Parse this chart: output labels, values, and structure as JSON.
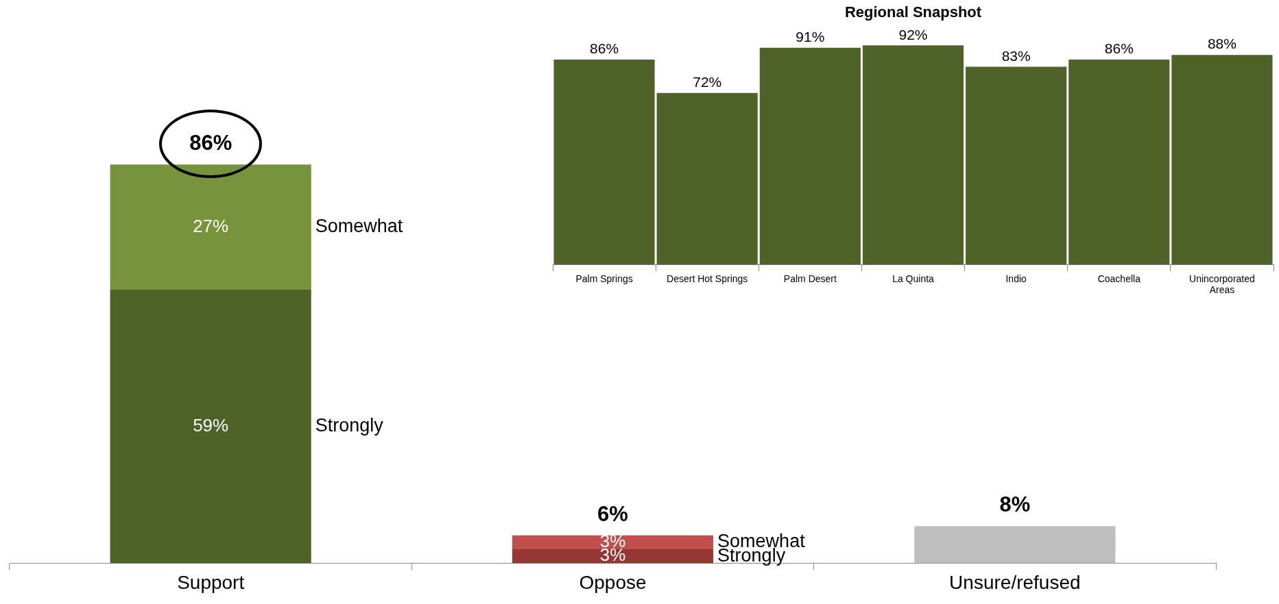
{
  "chart_data": [
    {
      "type": "bar",
      "stacked": true,
      "categories": [
        "Support",
        "Oppose",
        "Unsure/refused"
      ],
      "series": [
        {
          "name": "Strongly",
          "colors": [
            "#4f6228",
            "#953735",
            null
          ],
          "values": [
            59,
            3,
            null
          ],
          "value_labels": [
            "59%",
            "3%",
            null
          ]
        },
        {
          "name": "Somewhat",
          "colors": [
            "#77933c",
            "#c0504d",
            null
          ],
          "values": [
            27,
            3,
            null
          ],
          "value_labels": [
            "27%",
            "3%",
            null
          ]
        },
        {
          "colors": [
            null,
            null,
            "#bfbfbf"
          ],
          "values": [
            null,
            null,
            8
          ]
        }
      ],
      "totals": [
        "86%",
        "6%",
        "8%"
      ],
      "legend": false,
      "grid": false,
      "tick_labels": "x"
    },
    {
      "type": "bar",
      "title": "Regional Snapshot",
      "categories": [
        "Palm Springs",
        "Desert Hot Springs",
        "Palm Desert",
        "La Quinta",
        "Indio",
        "Coachella",
        "Unincorporated Areas"
      ],
      "values": [
        86,
        72,
        91,
        92,
        83,
        86,
        88
      ],
      "value_labels": [
        "86%",
        "72%",
        "91%",
        "92%",
        "83%",
        "86%",
        "88%"
      ],
      "color": "#4f6228",
      "legend": false,
      "grid": false,
      "tick_labels": "x"
    }
  ]
}
